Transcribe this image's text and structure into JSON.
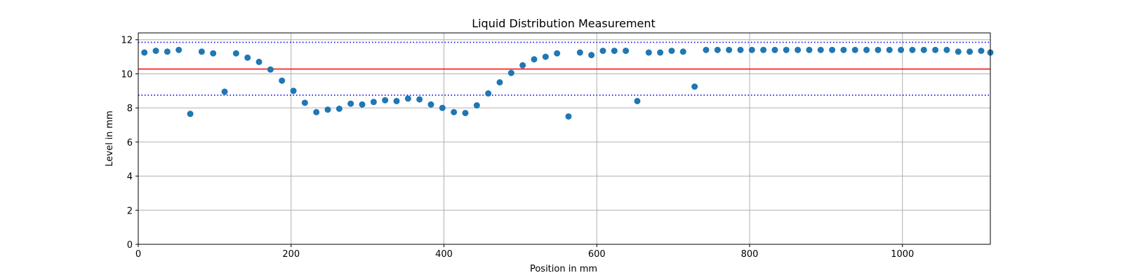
{
  "chart_data": {
    "type": "scatter",
    "title": "Liquid Distribution Measurement",
    "xlabel": "Position in mm",
    "ylabel": "Level in mm",
    "xlim": [
      0,
      1115
    ],
    "ylim": [
      0,
      12.4
    ],
    "xticks": [
      0,
      200,
      400,
      600,
      800,
      1000
    ],
    "yticks": [
      0,
      2,
      4,
      6,
      8,
      10,
      12
    ],
    "grid": true,
    "colors": {
      "points": "#1f77b4",
      "mean_line": "#ff0000",
      "limit_lines": "#0000ff",
      "grid": "#b0b0b0"
    },
    "reference_lines": [
      {
        "y": 10.28,
        "style": "solid",
        "color": "#ff0000"
      },
      {
        "y": 11.85,
        "style": "dotted",
        "color": "#0000ff"
      },
      {
        "y": 8.75,
        "style": "dotted",
        "color": "#0000ff"
      }
    ],
    "x": [
      8,
      23,
      38,
      53,
      68,
      83,
      98,
      113,
      128,
      143,
      158,
      173,
      188,
      203,
      218,
      233,
      248,
      263,
      278,
      293,
      308,
      323,
      338,
      353,
      368,
      383,
      398,
      413,
      428,
      443,
      458,
      473,
      488,
      503,
      518,
      533,
      548,
      563,
      578,
      593,
      608,
      623,
      638,
      653,
      668,
      683,
      698,
      713,
      728,
      743,
      758,
      773,
      788,
      803,
      818,
      833,
      848,
      863,
      878,
      893,
      908,
      923,
      938,
      953,
      968,
      983,
      998,
      1013,
      1028,
      1043,
      1058,
      1073,
      1088,
      1103,
      1115
    ],
    "y": [
      11.25,
      11.35,
      11.3,
      11.4,
      7.65,
      11.3,
      11.2,
      8.95,
      11.2,
      10.95,
      10.7,
      10.25,
      9.6,
      9.0,
      8.3,
      7.75,
      7.9,
      7.95,
      8.25,
      8.2,
      8.35,
      8.45,
      8.4,
      8.55,
      8.5,
      8.2,
      8.0,
      7.75,
      7.7,
      8.15,
      8.85,
      9.5,
      10.05,
      10.5,
      10.85,
      11.0,
      11.2,
      7.5,
      11.25,
      11.1,
      11.35,
      11.35,
      11.35,
      8.4,
      11.25,
      11.25,
      11.35,
      11.3,
      9.25,
      11.4,
      11.4,
      11.4,
      11.4,
      11.4,
      11.4,
      11.4,
      11.4,
      11.4,
      11.4,
      11.4,
      11.4,
      11.4,
      11.4,
      11.4,
      11.4,
      11.4,
      11.4,
      11.4,
      11.4,
      11.4,
      11.4,
      11.3,
      11.3,
      11.35,
      11.25
    ]
  }
}
